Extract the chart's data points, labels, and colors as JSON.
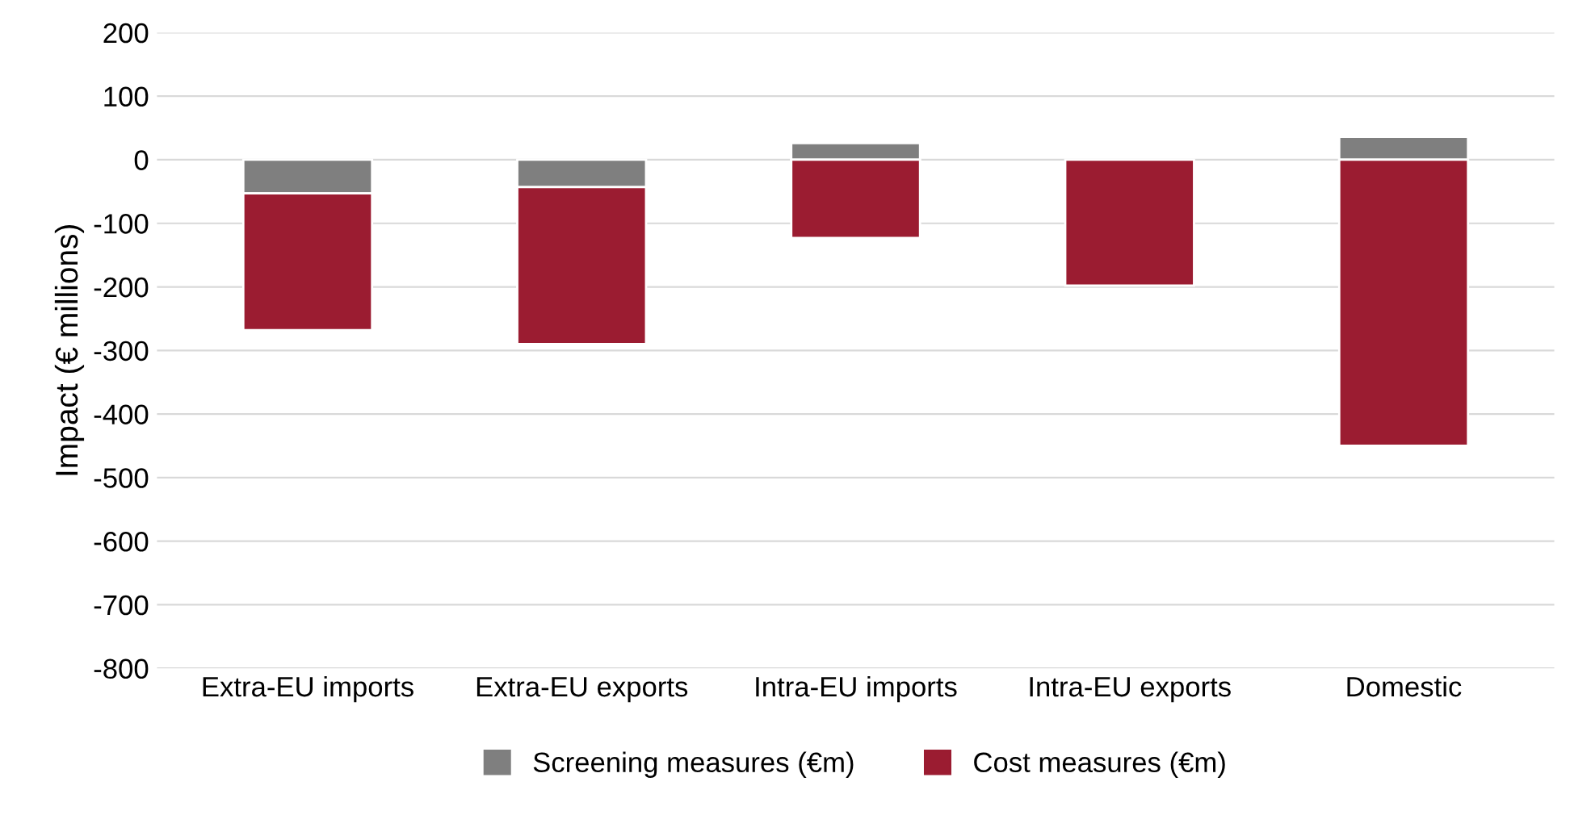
{
  "chart_data": {
    "type": "bar",
    "stacked": true,
    "ylabel": "Impact (€ millions)",
    "categories": [
      "Extra-EU imports",
      "Extra-EU exports",
      "Intra-EU imports",
      "Intra-EU exports",
      "Domestic"
    ],
    "series": [
      {
        "name": "Screening measures (€m)",
        "color": "#7f7f7f",
        "values": [
          -53,
          -43,
          26,
          null,
          36
        ]
      },
      {
        "name": "Cost measures (€m)",
        "color": "#9b1c31",
        "values": [
          -215,
          -247,
          -123,
          -198,
          -450
        ]
      }
    ],
    "ylim": [
      -800,
      200
    ],
    "yticks": [
      -800,
      -700,
      -600,
      -500,
      -400,
      -300,
      -200,
      -100,
      0,
      100,
      200
    ],
    "grid": "y",
    "legend": "bottom"
  }
}
